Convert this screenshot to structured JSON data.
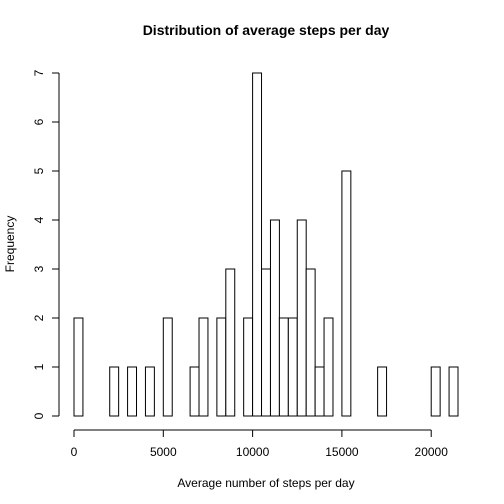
{
  "chart_data": {
    "type": "bar",
    "title": "Distribution of average steps per day",
    "xlabel": "Average number of steps per day",
    "ylabel": "Frequency",
    "bin_width": 500,
    "bins_start": [
      0,
      500,
      1000,
      1500,
      2000,
      2500,
      3000,
      3500,
      4000,
      4500,
      5000,
      5500,
      6000,
      6500,
      7000,
      7500,
      8000,
      8500,
      9000,
      9500,
      10000,
      10500,
      11000,
      11500,
      12000,
      12500,
      13000,
      13500,
      14000,
      14500,
      15000,
      15500,
      16000,
      16500,
      17000,
      17500,
      18000,
      18500,
      19000,
      19500,
      20000,
      20500,
      21000
    ],
    "values": [
      2,
      0,
      0,
      0,
      1,
      0,
      1,
      0,
      1,
      0,
      2,
      0,
      0,
      1,
      2,
      0,
      2,
      3,
      0,
      2,
      7,
      3,
      4,
      2,
      2,
      4,
      3,
      1,
      2,
      0,
      5,
      0,
      0,
      0,
      1,
      0,
      0,
      0,
      0,
      0,
      1,
      0,
      1
    ],
    "xlim": [
      0,
      21500
    ],
    "ylim": [
      0,
      7
    ],
    "x_ticks": [
      0,
      5000,
      10000,
      15000,
      20000
    ],
    "y_ticks": [
      0,
      1,
      2,
      3,
      4,
      5,
      6,
      7
    ],
    "grid": false,
    "colors": {
      "fill": "#ffffff",
      "stroke": "#000000"
    }
  }
}
